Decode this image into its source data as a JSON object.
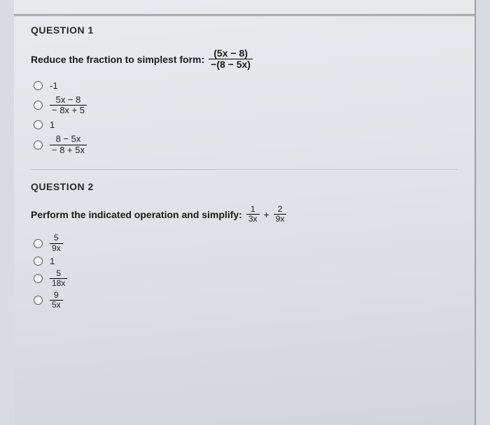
{
  "q1": {
    "header": "QUESTION 1",
    "prompt": "Reduce the fraction to simplest form:",
    "expr_num": "(5x − 8)",
    "expr_den": "−(8 − 5x)",
    "options": {
      "a": "-1",
      "b_num": "5x − 8",
      "b_den": "− 8x + 5",
      "c": "1",
      "d_num": "8 − 5x",
      "d_den": "− 8 + 5x"
    }
  },
  "q2": {
    "header": "QUESTION 2",
    "prompt": "Perform the indicated operation and simplify:",
    "t1_num": "1",
    "t1_den": "3x",
    "plus": "+",
    "t2_num": "2",
    "t2_den": "9x",
    "options": {
      "a_num": "5",
      "a_den": "9x",
      "b": "1",
      "c_num": "5",
      "c_den": "18x",
      "d_num": "9",
      "d_den": "5x"
    }
  }
}
